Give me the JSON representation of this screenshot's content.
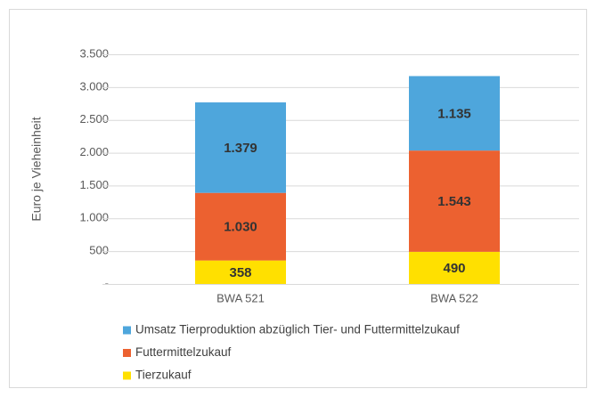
{
  "chart_data": {
    "type": "stacked_bar",
    "y_label": "Euro je Vieheinheit",
    "categories": [
      "BWA 521",
      "BWA 522"
    ],
    "series": [
      {
        "name": "Tierzukauf",
        "color": "#ffe000",
        "values": [
          358,
          490
        ]
      },
      {
        "name": "Futtermittelzukauf",
        "color": "#ec6130",
        "values": [
          1030,
          1543
        ],
        "value_labels": [
          "1.030",
          "1.543"
        ]
      },
      {
        "name": "Umsatz Tierproduktion abzüglich Tier- und Futtermittelzukauf",
        "color": "#4ea6dc",
        "values": [
          1379,
          1135
        ],
        "value_labels": [
          "1.379",
          "1.135"
        ]
      }
    ],
    "ylim": [
      0,
      3500
    ],
    "yticks": [
      {
        "value": 0,
        "label": "-"
      },
      500,
      {
        "value": 1000,
        "label": "1.000"
      },
      {
        "value": 1500,
        "label": "1.500"
      },
      {
        "value": 2000,
        "label": "2.000"
      },
      {
        "value": 2500,
        "label": "2.500"
      },
      {
        "value": 3000,
        "label": "3.000"
      },
      {
        "value": 3500,
        "label": "3.500"
      }
    ],
    "grid": true
  }
}
